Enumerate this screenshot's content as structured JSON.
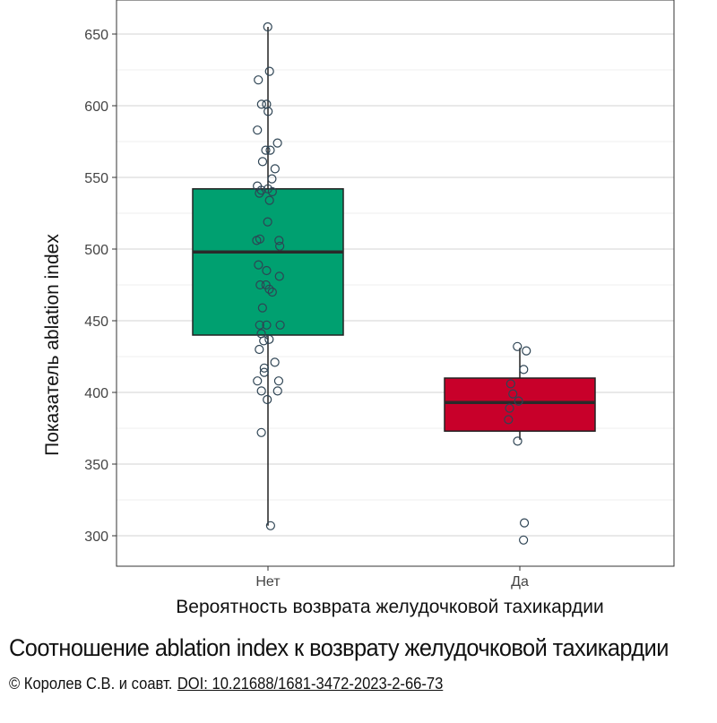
{
  "chart_data": {
    "type": "boxplot",
    "xlabel": "Вероятность возврата желудочковой тахикардии",
    "ylabel": "Показатель ablation index",
    "ylim": [
      290,
      660
    ],
    "yticks": [
      300,
      350,
      400,
      450,
      500,
      550,
      600,
      650
    ],
    "grid": true,
    "categories": [
      "Нет",
      "Да"
    ],
    "colors": {
      "Нет": "#00A070",
      "Да": "#C8002A"
    },
    "boxes": [
      {
        "category": "Нет",
        "whisker_low": 307,
        "q1": 440,
        "median": 498,
        "q3": 542,
        "whisker_high": 655
      },
      {
        "category": "Да",
        "whisker_low": 367,
        "q1": 373,
        "median": 393,
        "q3": 410,
        "whisker_high": 431
      }
    ],
    "points": [
      {
        "category": "Нет",
        "values": [
          655,
          624,
          618,
          601,
          601,
          596,
          583,
          574,
          569,
          569,
          561,
          556,
          549,
          544,
          542,
          541,
          540,
          539,
          534,
          519,
          507,
          506,
          506,
          502,
          489,
          485,
          481,
          475,
          475,
          472,
          470,
          459,
          447,
          447,
          447,
          441,
          437,
          436,
          430,
          421,
          417,
          414,
          408,
          408,
          401,
          401,
          395,
          372,
          307
        ]
      },
      {
        "category": "Да",
        "values": [
          432,
          429,
          416,
          406,
          399,
          394,
          389,
          381,
          366,
          309,
          297
        ]
      }
    ]
  },
  "caption": "Соотношение ablation index к возврату желудочковой тахикардии",
  "credit": "© Королев С.В. и соавт.",
  "doi": "DOI: 10.21688/1681-3472-2023-2-66-73"
}
